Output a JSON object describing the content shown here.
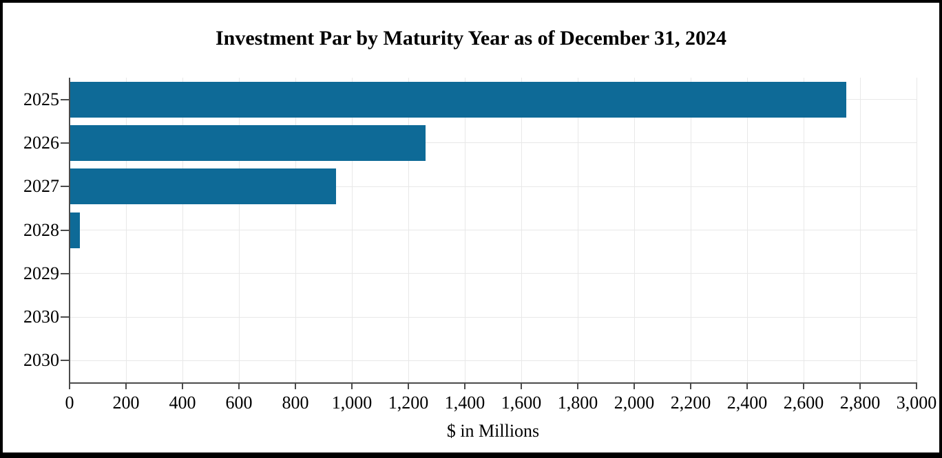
{
  "figure": {
    "background": "#ffffff",
    "border_color": "#000000"
  },
  "chart_data": {
    "type": "bar",
    "orientation": "horizontal",
    "title": "Investment Par by Maturity Year as of December 31, 2024",
    "xlabel": "$ in Millions",
    "ylabel": "",
    "categories": [
      "2025",
      "2026",
      "2027",
      "2028",
      "2029",
      "2030",
      "2030"
    ],
    "values": [
      2750,
      1260,
      945,
      37,
      0,
      0,
      0
    ],
    "xlim": [
      0,
      3000
    ],
    "xticks": [
      0,
      200,
      400,
      600,
      800,
      1000,
      1200,
      1400,
      1600,
      1800,
      2000,
      2200,
      2400,
      2600,
      2800,
      3000
    ],
    "xtick_labels": [
      "0",
      "200",
      "400",
      "600",
      "800",
      "1,000",
      "1,200",
      "1,400",
      "1,600",
      "1,800",
      "2,000",
      "2,200",
      "2,400",
      "2,600",
      "2,800",
      "3,000"
    ],
    "grid": true,
    "grid_style": "vertical lines at each x tick, horizontal lines at each category center",
    "legend": "none",
    "bar_color": "#0e6a97",
    "grid_color": "#e8e8e8",
    "axis_color": "#4a4a4a",
    "text_color": "#000000"
  }
}
